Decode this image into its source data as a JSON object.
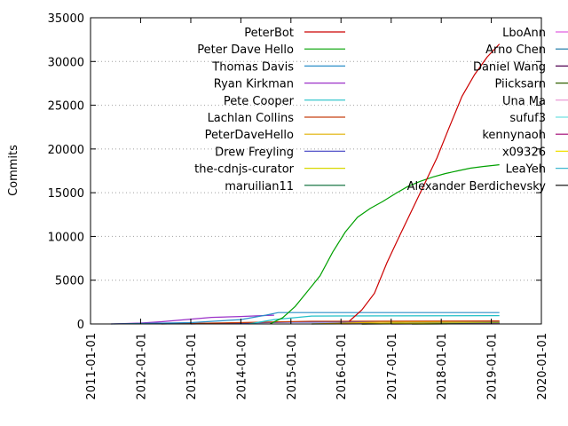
{
  "chart_data": {
    "type": "line",
    "title": "",
    "xlabel": "",
    "ylabel": "Commits",
    "x_ticks": [
      "2011-01-01",
      "2012-01-01",
      "2013-01-01",
      "2014-01-01",
      "2015-01-01",
      "2016-01-01",
      "2017-01-01",
      "2018-01-01",
      "2019-01-01",
      "2020-01-01"
    ],
    "y_ticks": [
      "0",
      "5000",
      "10000",
      "15000",
      "20000",
      "25000",
      "30000",
      "35000"
    ],
    "xlim": [
      "2011-01-01",
      "2020-01-01"
    ],
    "ylim": [
      0,
      35000
    ],
    "grid": "horizontal dotted",
    "legend_placement": "top, two columns",
    "series": [
      {
        "name": "PeterBot",
        "color": "#cc0000",
        "x": [
          "2016-03-01",
          "2016-06-01",
          "2016-09-01",
          "2016-12-01",
          "2017-03-01",
          "2017-06-01",
          "2017-09-01",
          "2017-12-01",
          "2018-03-01",
          "2018-06-01",
          "2018-09-01",
          "2018-12-01",
          "2019-03-01"
        ],
        "y": [
          300,
          1600,
          3500,
          7000,
          10000,
          13000,
          16000,
          19000,
          22500,
          26000,
          28500,
          30500,
          32000
        ]
      },
      {
        "name": "Peter Dave Hello",
        "color": "#00a000",
        "x": [
          "2014-08-01",
          "2014-11-01",
          "2015-02-01",
          "2015-05-01",
          "2015-08-01",
          "2015-11-01",
          "2016-02-01",
          "2016-05-01",
          "2016-08-01",
          "2016-11-01",
          "2017-02-01",
          "2017-05-01",
          "2017-08-01",
          "2017-11-01",
          "2018-02-01",
          "2018-05-01",
          "2018-08-01",
          "2018-11-01",
          "2019-03-01"
        ],
        "y": [
          0,
          700,
          2000,
          3700,
          5500,
          8200,
          10500,
          12200,
          13200,
          14000,
          14900,
          15700,
          16300,
          16800,
          17200,
          17500,
          17800,
          18000,
          18200
        ]
      },
      {
        "name": "Thomas Davis",
        "color": "#2a8fc8",
        "x": [
          "2011-06-01",
          "2013-01-01",
          "2014-01-01",
          "2014-07-01",
          "2014-10-01",
          "2019-03-01"
        ],
        "y": [
          0,
          150,
          500,
          1000,
          1300,
          1300
        ]
      },
      {
        "name": "Ryan Kirkman",
        "color": "#9b30c8",
        "x": [
          "2011-06-01",
          "2012-01-01",
          "2012-06-01",
          "2013-01-01",
          "2013-06-01",
          "2014-01-01",
          "2014-06-01",
          "2014-09-01"
        ],
        "y": [
          0,
          100,
          250,
          550,
          750,
          850,
          950,
          1000
        ]
      },
      {
        "name": "Pete Cooper",
        "color": "#20c0c8",
        "x": [
          "2014-03-01",
          "2014-09-01",
          "2015-06-01",
          "2019-03-01"
        ],
        "y": [
          0,
          500,
          900,
          950
        ]
      },
      {
        "name": "Lachlan Collins",
        "color": "#c84010",
        "x": [
          "2012-06-01",
          "2013-06-01",
          "2014-06-01",
          "2015-06-01",
          "2019-03-01"
        ],
        "y": [
          0,
          100,
          200,
          300,
          350
        ]
      },
      {
        "name": "PeterDaveHello",
        "color": "#e0b000",
        "x": [
          "2015-06-01",
          "2016-06-01",
          "2017-06-01",
          "2019-03-01"
        ],
        "y": [
          0,
          150,
          250,
          300
        ]
      },
      {
        "name": "Drew Freyling",
        "color": "#5050c8",
        "x": [
          "2013-01-01",
          "2014-01-01",
          "2015-01-01",
          "2019-03-01"
        ],
        "y": [
          0,
          100,
          200,
          250
        ]
      },
      {
        "name": "the-cdnjs-curator",
        "color": "#d8d800",
        "x": [
          "2016-06-01",
          "2017-06-01",
          "2019-03-01"
        ],
        "y": [
          0,
          100,
          200
        ]
      },
      {
        "name": "maruilian11",
        "color": "#006830",
        "x": [
          "2016-06-01",
          "2017-06-01",
          "2019-03-01"
        ],
        "y": [
          0,
          100,
          150
        ]
      },
      {
        "name": "LboAnn",
        "color": "#e060e0",
        "x": [
          "2016-01-01",
          "2019-03-01"
        ],
        "y": [
          0,
          100
        ]
      },
      {
        "name": "Arno Chen",
        "color": "#1070a0",
        "x": [
          "2015-06-01",
          "2019-03-01"
        ],
        "y": [
          0,
          80
        ]
      },
      {
        "name": "Daniel Wang",
        "color": "#500050",
        "x": [
          "2016-06-01",
          "2019-03-01"
        ],
        "y": [
          0,
          70
        ]
      },
      {
        "name": "Piicksarn",
        "color": "#306000",
        "x": [
          "2016-06-01",
          "2019-03-01"
        ],
        "y": [
          0,
          60
        ]
      },
      {
        "name": "Una Ma",
        "color": "#e890d0",
        "x": [
          "2017-01-01",
          "2019-03-01"
        ],
        "y": [
          0,
          50
        ]
      },
      {
        "name": "sufuf3",
        "color": "#70e0e0",
        "x": [
          "2017-01-01",
          "2019-03-01"
        ],
        "y": [
          0,
          40
        ]
      },
      {
        "name": "kennynaoh",
        "color": "#a00070",
        "x": [
          "2017-01-01",
          "2019-03-01"
        ],
        "y": [
          0,
          35
        ]
      },
      {
        "name": "x09326",
        "color": "#f0e000",
        "x": [
          "2017-06-01",
          "2019-03-01"
        ],
        "y": [
          0,
          30
        ]
      },
      {
        "name": "LeaYeh",
        "color": "#40b8d0",
        "x": [
          "2017-06-01",
          "2019-03-01"
        ],
        "y": [
          0,
          25
        ]
      },
      {
        "name": "Alexander Berdichevsky",
        "color": "#000000",
        "x": [
          "2017-06-01",
          "2019-03-01"
        ],
        "y": [
          0,
          20
        ]
      }
    ]
  }
}
